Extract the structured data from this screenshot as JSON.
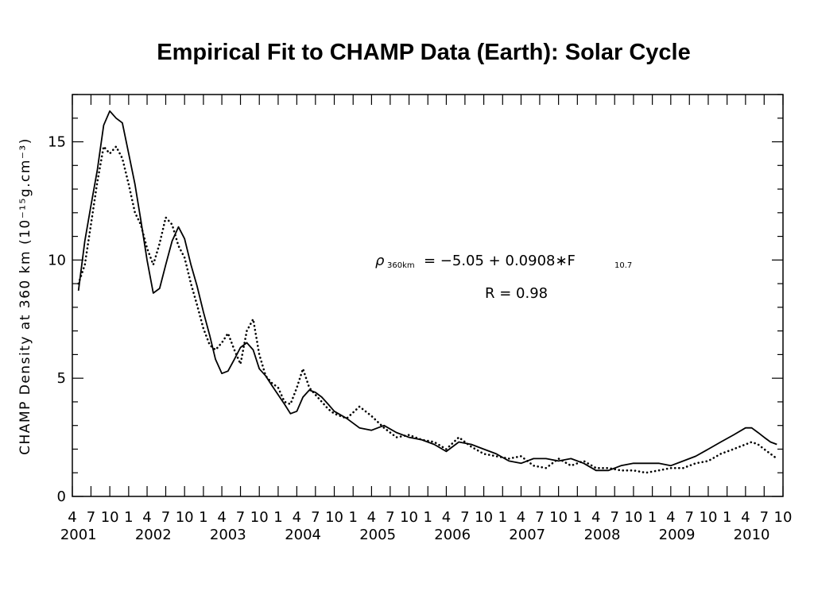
{
  "chart_data": {
    "type": "line",
    "title": "Empirical Fit to CHAMP Data (Earth): Solar Cycle",
    "ylabel": "CHAMP Density at 360 km (10⁻¹⁵g.cm⁻³)",
    "xlabel": "",
    "xlim": [
      "2001-04-01",
      "2010-10-01"
    ],
    "ylim": [
      0,
      17
    ],
    "y_ticks": [
      0,
      5,
      10,
      15
    ],
    "x_tick_row": [
      "4",
      "7",
      "10",
      "1",
      "4",
      "7",
      "10",
      "1",
      "4",
      "7",
      "10",
      "1",
      "4",
      "7",
      "10",
      "1",
      "4",
      "7",
      "10",
      "1",
      "4",
      "7",
      "10",
      "1",
      "4",
      "7",
      "10",
      "1",
      "4",
      "7",
      "10",
      "1",
      "4",
      "7",
      "10",
      "1",
      "4",
      "7",
      "10"
    ],
    "x_year_labels": [
      "2001",
      "2002",
      "2003",
      "2004",
      "2005",
      "2006",
      "2007",
      "2008",
      "2009",
      "2010"
    ],
    "annotation": {
      "rho": "ρ",
      "rho_sub": "360km",
      "eq_part1": "= −5.05 + 0.0908∗F",
      "f_sub": "10.7",
      "r_text": "R = 0.98"
    },
    "series": [
      {
        "style": "solid",
        "x": [
          "2001-05-01",
          "2001-06-01",
          "2001-07-01",
          "2001-08-01",
          "2001-09-01",
          "2001-10-01",
          "2001-11-01",
          "2001-12-01",
          "2002-01-01",
          "2002-02-01",
          "2002-03-01",
          "2002-04-01",
          "2002-05-01",
          "2002-06-01",
          "2002-07-01",
          "2002-08-01",
          "2002-09-01",
          "2002-10-01",
          "2002-11-01",
          "2002-12-01",
          "2003-01-01",
          "2003-02-01",
          "2003-03-01",
          "2003-04-01",
          "2003-05-01",
          "2003-06-01",
          "2003-07-01",
          "2003-08-01",
          "2003-09-01",
          "2003-10-01",
          "2003-11-01",
          "2003-12-01",
          "2004-01-01",
          "2004-02-01",
          "2004-03-01",
          "2004-04-01",
          "2004-05-01",
          "2004-06-01",
          "2004-07-01",
          "2004-08-01",
          "2004-09-01",
          "2004-10-01",
          "2004-12-01",
          "2005-02-01",
          "2005-04-01",
          "2005-06-01",
          "2005-08-01",
          "2005-10-01",
          "2005-12-01",
          "2006-02-01",
          "2006-04-01",
          "2006-06-01",
          "2006-08-01",
          "2006-10-01",
          "2006-12-01",
          "2007-02-01",
          "2007-04-01",
          "2007-06-01",
          "2007-08-01",
          "2007-10-01",
          "2007-12-01",
          "2008-02-01",
          "2008-04-01",
          "2008-06-01",
          "2008-08-01",
          "2008-10-01",
          "2008-12-01",
          "2009-02-01",
          "2009-04-01",
          "2009-06-01",
          "2009-08-01",
          "2009-10-01",
          "2009-12-01",
          "2010-02-01",
          "2010-04-01",
          "2010-05-01",
          "2010-06-01",
          "2010-07-01",
          "2010-08-01",
          "2010-09-01"
        ],
        "values": [
          8.7,
          10.8,
          12.3,
          13.8,
          15.7,
          16.3,
          16.0,
          15.8,
          14.5,
          13.2,
          11.7,
          10.0,
          8.6,
          8.8,
          9.8,
          10.8,
          11.4,
          10.9,
          9.8,
          8.9,
          7.8,
          6.8,
          5.8,
          5.2,
          5.3,
          5.8,
          6.3,
          6.5,
          6.2,
          5.4,
          5.1,
          4.7,
          4.3,
          3.9,
          3.5,
          3.6,
          4.2,
          4.5,
          4.4,
          4.2,
          3.9,
          3.6,
          3.3,
          2.9,
          2.8,
          3.0,
          2.7,
          2.5,
          2.4,
          2.2,
          1.9,
          2.3,
          2.2,
          2.0,
          1.8,
          1.5,
          1.4,
          1.6,
          1.6,
          1.5,
          1.6,
          1.4,
          1.1,
          1.1,
          1.3,
          1.4,
          1.4,
          1.4,
          1.3,
          1.5,
          1.7,
          2.0,
          2.3,
          2.6,
          2.9,
          2.9,
          2.7,
          2.5,
          2.3,
          2.2
        ]
      },
      {
        "style": "dotted",
        "x": [
          "2001-05-01",
          "2001-06-01",
          "2001-07-01",
          "2001-08-01",
          "2001-09-01",
          "2001-10-01",
          "2001-11-01",
          "2001-12-01",
          "2002-01-01",
          "2002-02-01",
          "2002-03-01",
          "2002-04-01",
          "2002-05-01",
          "2002-06-01",
          "2002-07-01",
          "2002-08-01",
          "2002-09-01",
          "2002-10-01",
          "2002-11-01",
          "2002-12-01",
          "2003-01-01",
          "2003-02-01",
          "2003-03-01",
          "2003-04-01",
          "2003-05-01",
          "2003-06-01",
          "2003-07-01",
          "2003-08-01",
          "2003-09-01",
          "2003-10-01",
          "2003-11-01",
          "2003-12-01",
          "2004-01-01",
          "2004-02-01",
          "2004-03-01",
          "2004-04-01",
          "2004-05-01",
          "2004-06-01",
          "2004-07-01",
          "2004-08-01",
          "2004-09-01",
          "2004-10-01",
          "2004-12-01",
          "2005-02-01",
          "2005-04-01",
          "2005-06-01",
          "2005-08-01",
          "2005-10-01",
          "2005-12-01",
          "2006-02-01",
          "2006-04-01",
          "2006-06-01",
          "2006-08-01",
          "2006-10-01",
          "2006-12-01",
          "2007-02-01",
          "2007-04-01",
          "2007-06-01",
          "2007-08-01",
          "2007-10-01",
          "2007-12-01",
          "2008-02-01",
          "2008-04-01",
          "2008-06-01",
          "2008-08-01",
          "2008-10-01",
          "2008-12-01",
          "2009-02-01",
          "2009-04-01",
          "2009-06-01",
          "2009-08-01",
          "2009-10-01",
          "2009-12-01",
          "2010-02-01",
          "2010-04-01",
          "2010-05-01",
          "2010-06-01",
          "2010-07-01",
          "2010-08-01",
          "2010-09-01"
        ],
        "values": [
          9.0,
          9.8,
          11.5,
          13.3,
          14.8,
          14.5,
          14.8,
          14.3,
          13.2,
          12.0,
          11.5,
          10.5,
          9.8,
          10.7,
          11.8,
          11.5,
          10.6,
          10.1,
          9.0,
          8.1,
          7.1,
          6.4,
          6.2,
          6.5,
          6.9,
          6.2,
          5.6,
          7.0,
          7.5,
          6.0,
          5.1,
          4.8,
          4.6,
          4.0,
          3.9,
          4.6,
          5.4,
          4.6,
          4.3,
          4.0,
          3.7,
          3.5,
          3.3,
          3.8,
          3.4,
          2.9,
          2.5,
          2.6,
          2.4,
          2.3,
          2.0,
          2.5,
          2.1,
          1.8,
          1.7,
          1.6,
          1.7,
          1.3,
          1.2,
          1.6,
          1.3,
          1.5,
          1.2,
          1.2,
          1.1,
          1.1,
          1.0,
          1.1,
          1.2,
          1.2,
          1.4,
          1.5,
          1.8,
          2.0,
          2.2,
          2.3,
          2.2,
          2.0,
          1.8,
          1.6
        ]
      }
    ]
  }
}
